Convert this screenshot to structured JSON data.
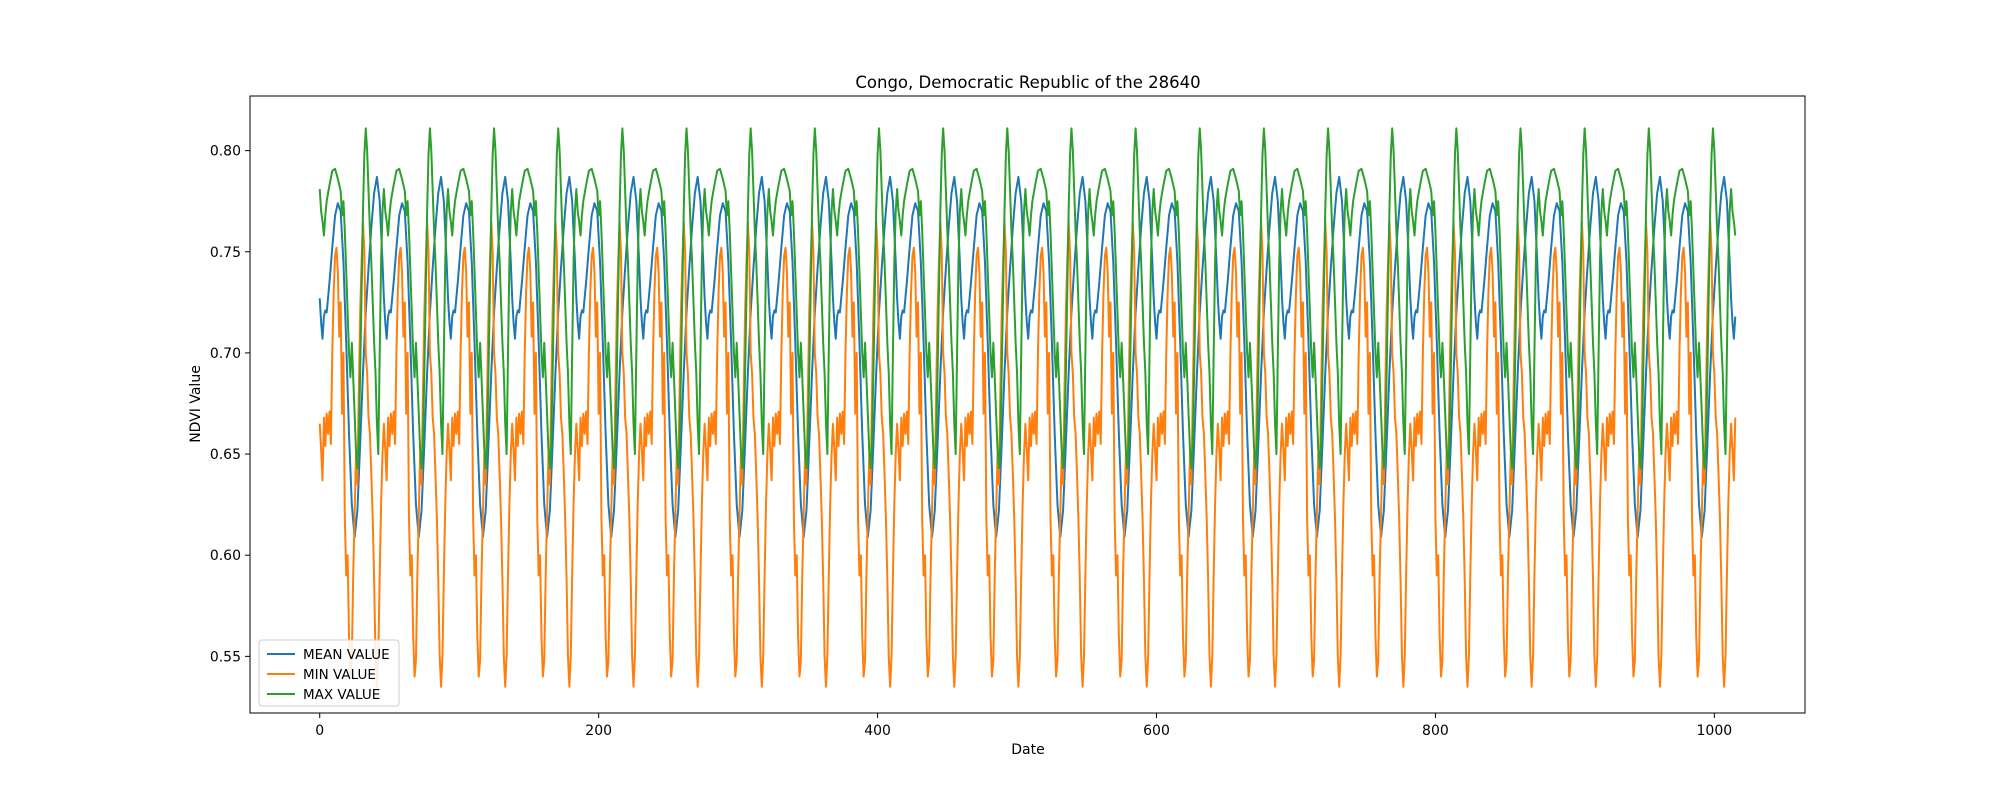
{
  "chart_data": {
    "type": "line",
    "title": "Congo, Democratic Republic of the 28640",
    "xlabel": "Date",
    "ylabel": "NDVI Value",
    "xlim": [
      -50,
      1065
    ],
    "ylim": [
      0.522,
      0.827
    ],
    "xticks": [
      0,
      200,
      400,
      600,
      800,
      1000
    ],
    "yticks": [
      0.55,
      0.6,
      0.65,
      0.7,
      0.75,
      0.8
    ],
    "ytick_labels": [
      "0.55",
      "0.60",
      "0.65",
      "0.70",
      "0.75",
      "0.80"
    ],
    "grid": false,
    "legend_position": "lower-left",
    "period": 46,
    "x_start": 0,
    "x_end": 1015,
    "series": [
      {
        "name": "MEAN VALUE",
        "color": "#1f77b4",
        "cycle_keypoints": [
          [
            0,
            0.727
          ],
          [
            1,
            0.715
          ],
          [
            2,
            0.707
          ],
          [
            3,
            0.718
          ],
          [
            4,
            0.721
          ],
          [
            5,
            0.72
          ],
          [
            7,
            0.735
          ],
          [
            9,
            0.752
          ],
          [
            11,
            0.768
          ],
          [
            13,
            0.774
          ],
          [
            15,
            0.77
          ],
          [
            17,
            0.745
          ],
          [
            19,
            0.705
          ],
          [
            21,
            0.66
          ],
          [
            23,
            0.625
          ],
          [
            25,
            0.609
          ],
          [
            27,
            0.622
          ],
          [
            29,
            0.655
          ],
          [
            31,
            0.69
          ],
          [
            33,
            0.72
          ],
          [
            35,
            0.742
          ],
          [
            37,
            0.762
          ],
          [
            39,
            0.779
          ],
          [
            41,
            0.787
          ],
          [
            43,
            0.775
          ],
          [
            45,
            0.745
          ],
          [
            46,
            0.727
          ]
        ]
      },
      {
        "name": "MIN VALUE",
        "color": "#ff7f0e",
        "cycle_keypoints": [
          [
            0,
            0.665
          ],
          [
            1,
            0.652
          ],
          [
            2,
            0.637
          ],
          [
            3,
            0.668
          ],
          [
            4,
            0.654
          ],
          [
            5,
            0.67
          ],
          [
            6,
            0.66
          ],
          [
            7,
            0.671
          ],
          [
            8,
            0.655
          ],
          [
            9,
            0.7
          ],
          [
            10,
            0.73
          ],
          [
            11,
            0.748
          ],
          [
            12,
            0.752
          ],
          [
            13,
            0.74
          ],
          [
            14,
            0.708
          ],
          [
            15,
            0.725
          ],
          [
            16,
            0.67
          ],
          [
            17,
            0.7
          ],
          [
            18,
            0.618
          ],
          [
            19,
            0.59
          ],
          [
            20,
            0.6
          ],
          [
            21,
            0.56
          ],
          [
            22,
            0.54
          ],
          [
            23,
            0.548
          ],
          [
            24,
            0.59
          ],
          [
            25,
            0.62
          ],
          [
            26,
            0.65
          ],
          [
            27,
            0.635
          ],
          [
            28,
            0.68
          ],
          [
            29,
            0.72
          ],
          [
            30,
            0.745
          ],
          [
            31,
            0.765
          ],
          [
            32,
            0.75
          ],
          [
            33,
            0.7
          ],
          [
            34,
            0.69
          ],
          [
            35,
            0.668
          ],
          [
            36,
            0.66
          ],
          [
            37,
            0.64
          ],
          [
            38,
            0.618
          ],
          [
            39,
            0.588
          ],
          [
            40,
            0.55
          ],
          [
            41,
            0.535
          ],
          [
            42,
            0.55
          ],
          [
            43,
            0.59
          ],
          [
            44,
            0.625
          ],
          [
            45,
            0.65
          ],
          [
            46,
            0.665
          ]
        ]
      },
      {
        "name": "MAX VALUE",
        "color": "#2ca02c",
        "cycle_keypoints": [
          [
            0,
            0.781
          ],
          [
            1,
            0.77
          ],
          [
            2,
            0.765
          ],
          [
            3,
            0.758
          ],
          [
            4,
            0.768
          ],
          [
            5,
            0.775
          ],
          [
            7,
            0.783
          ],
          [
            9,
            0.79
          ],
          [
            11,
            0.791
          ],
          [
            13,
            0.786
          ],
          [
            15,
            0.78
          ],
          [
            16,
            0.768
          ],
          [
            17,
            0.775
          ],
          [
            18,
            0.76
          ],
          [
            19,
            0.74
          ],
          [
            20,
            0.72
          ],
          [
            21,
            0.7
          ],
          [
            22,
            0.688
          ],
          [
            23,
            0.705
          ],
          [
            24,
            0.688
          ],
          [
            25,
            0.67
          ],
          [
            26,
            0.652
          ],
          [
            27,
            0.643
          ],
          [
            28,
            0.655
          ],
          [
            29,
            0.69
          ],
          [
            30,
            0.73
          ],
          [
            31,
            0.77
          ],
          [
            32,
            0.798
          ],
          [
            33,
            0.811
          ],
          [
            34,
            0.8
          ],
          [
            35,
            0.78
          ],
          [
            36,
            0.76
          ],
          [
            37,
            0.745
          ],
          [
            38,
            0.725
          ],
          [
            39,
            0.705
          ],
          [
            40,
            0.69
          ],
          [
            41,
            0.665
          ],
          [
            42,
            0.65
          ],
          [
            43,
            0.7
          ],
          [
            44,
            0.745
          ],
          [
            45,
            0.77
          ],
          [
            46,
            0.781
          ]
        ]
      }
    ]
  }
}
